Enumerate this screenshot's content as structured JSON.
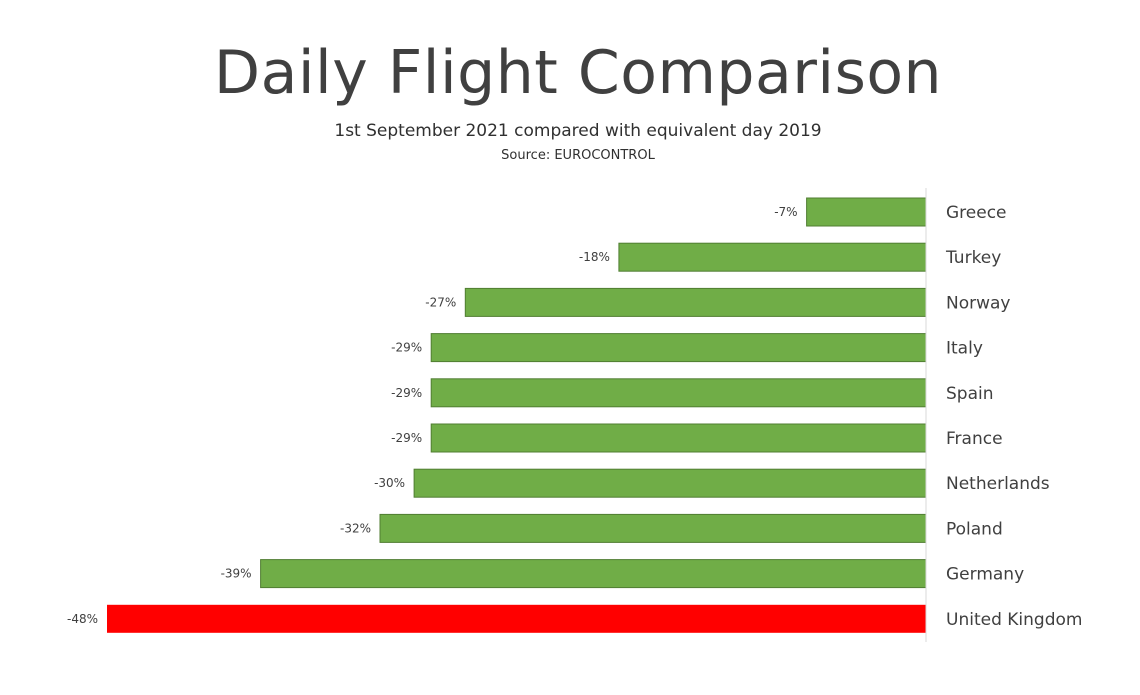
{
  "chart_data": {
    "type": "bar",
    "orientation": "horizontal",
    "title": "Daily Flight Comparison",
    "subtitle": "1st September  2021 compared  with equivalent day 2019",
    "source": "Source: EUROCONTROL",
    "categories": [
      "Greece",
      "Turkey",
      "Norway",
      "Italy",
      "Spain",
      "France",
      "Netherlands",
      "Poland",
      "Germany",
      "United Kingdom"
    ],
    "values": [
      -7,
      -18,
      -27,
      -29,
      -29,
      -29,
      -30,
      -32,
      -39,
      -48
    ],
    "data_labels": [
      "-7%",
      "-18%",
      "-27%",
      "-29%",
      "-29%",
      "-29%",
      "-30%",
      "-32%",
      "-39%",
      "-48%"
    ],
    "unit": "%",
    "xlim": [
      -48,
      0
    ],
    "grid": false,
    "legend": "none",
    "colors": {
      "default": "#70ad47",
      "highlight": "#ff0000",
      "border": "#507e32"
    },
    "highlight_category": "United Kingdom"
  }
}
